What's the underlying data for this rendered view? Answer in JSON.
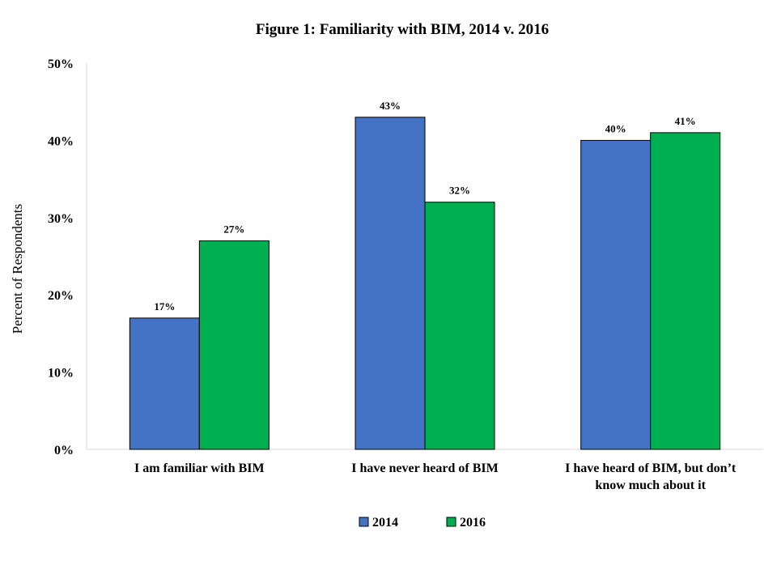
{
  "chart_data": {
    "type": "bar",
    "title": "Figure 1: Familiarity  with  BIM, 2014 v. 2016",
    "xlabel": "",
    "ylabel": "Percent of Respondents",
    "ylim": [
      0,
      50
    ],
    "yticks": [
      "0%",
      "10%",
      "20%",
      "30%",
      "40%",
      "50%"
    ],
    "ytick_values": [
      0,
      10,
      20,
      30,
      40,
      50
    ],
    "grid": false,
    "legend_position": "bottom",
    "categories": [
      [
        "I am familiar with BIM"
      ],
      [
        "I have never heard of BIM"
      ],
      [
        "I have heard of BIM, but don’t",
        "know much about it"
      ]
    ],
    "series": [
      {
        "name": "2014",
        "values": [
          17,
          43,
          40
        ],
        "labels": [
          "17%",
          "43%",
          "40%"
        ],
        "color": "#4472C4"
      },
      {
        "name": "2016",
        "values": [
          27,
          32,
          41
        ],
        "labels": [
          "27%",
          "32%",
          "41%"
        ],
        "color": "#00B050"
      }
    ]
  }
}
